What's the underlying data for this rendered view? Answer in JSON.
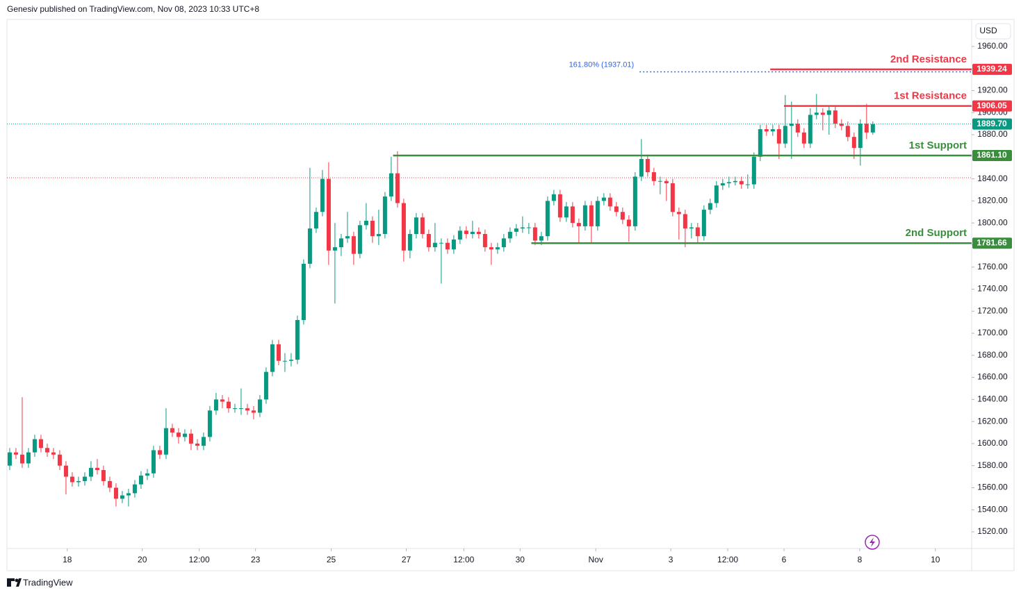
{
  "chart_data": {
    "type": "candlestick",
    "header": "Genesiv published on TradingView.com, Nov 08, 2023 10:33 UTC+8",
    "currency": "USD",
    "brand": "TradingView",
    "up_color": "#089981",
    "down_color": "#f23645",
    "open": [
      1580,
      1592,
      1590,
      1582,
      1592,
      1604,
      1596,
      1592,
      1590,
      1580,
      1570,
      1565,
      1566,
      1570,
      1578,
      1576,
      1566,
      1560,
      1550,
      1553,
      1555,
      1563,
      1571,
      1573,
      1594,
      1590,
      1614,
      1610,
      1606,
      1609,
      1600,
      1598,
      1606,
      1630,
      1640,
      1638,
      1632,
      1632,
      1632,
      1630,
      1628,
      1640,
      1665,
      1690,
      1675,
      1675,
      1676,
      1712,
      1763,
      1795,
      1810,
      1840,
      1775,
      1778,
      1786,
      1788,
      1772,
      1798,
      1802,
      1788,
      1790,
      1824,
      1845,
      1818,
      1775,
      1790,
      1805,
      1790,
      1778,
      1782,
      1782,
      1776,
      1785,
      1793,
      1790,
      1792,
      1790,
      1778,
      1776,
      1778,
      1786,
      1792,
      1795,
      1796,
      1796,
      1784,
      1788,
      1820,
      1826,
      1805,
      1815,
      1800,
      1797,
      1816,
      1797,
      1820,
      1823,
      1815,
      1810,
      1803,
      1797,
      1842,
      1858,
      1846,
      1838,
      1838,
      1836,
      1810,
      1808,
      1795,
      1796,
      1788,
      1812,
      1818,
      1834,
      1836,
      1837,
      1838,
      1835,
      1835,
      1860,
      1885,
      1883,
      1885,
      1872,
      1888,
      1890,
      1882,
      1872,
      1898,
      1900,
      1898,
      1902,
      1890,
      1888,
      1878,
      1868,
      1890,
      1882
    ],
    "high": [
      1596,
      1596,
      1642,
      1596,
      1608,
      1608,
      1600,
      1596,
      1594,
      1584,
      1574,
      1570,
      1574,
      1584,
      1586,
      1580,
      1570,
      1564,
      1557,
      1559,
      1567,
      1575,
      1577,
      1598,
      1598,
      1632,
      1618,
      1614,
      1613,
      1613,
      1604,
      1610,
      1634,
      1646,
      1644,
      1642,
      1636,
      1650,
      1636,
      1634,
      1644,
      1669,
      1694,
      1694,
      1682,
      1682,
      1716,
      1767,
      1850,
      1814,
      1848,
      1855,
      1800,
      1790,
      1810,
      1792,
      1802,
      1818,
      1806,
      1812,
      1828,
      1860,
      1865,
      1822,
      1794,
      1809,
      1809,
      1794,
      1800,
      1786,
      1786,
      1789,
      1797,
      1797,
      1802,
      1796,
      1794,
      1782,
      1782,
      1790,
      1796,
      1799,
      1806,
      1800,
      1800,
      1792,
      1824,
      1830,
      1830,
      1819,
      1819,
      1804,
      1820,
      1820,
      1824,
      1827,
      1827,
      1819,
      1814,
      1807,
      1846,
      1876,
      1862,
      1850,
      1842,
      1840,
      1840,
      1814,
      1812,
      1800,
      1800,
      1816,
      1822,
      1838,
      1840,
      1842,
      1842,
      1842,
      1844,
      1864,
      1889,
      1889,
      1889,
      1889,
      1916,
      1910,
      1894,
      1886,
      1904,
      1917,
      1904,
      1906,
      1906,
      1894,
      1892,
      1882,
      1894,
      1908,
      1892
    ],
    "low": [
      1576,
      1586,
      1578,
      1578,
      1588,
      1592,
      1588,
      1586,
      1576,
      1554,
      1561,
      1561,
      1562,
      1566,
      1572,
      1562,
      1556,
      1543,
      1546,
      1543,
      1551,
      1559,
      1567,
      1569,
      1586,
      1586,
      1606,
      1600,
      1602,
      1594,
      1594,
      1594,
      1602,
      1626,
      1632,
      1628,
      1628,
      1626,
      1626,
      1622,
      1624,
      1636,
      1661,
      1671,
      1665,
      1670,
      1672,
      1708,
      1759,
      1791,
      1806,
      1762,
      1727,
      1770,
      1782,
      1762,
      1768,
      1794,
      1782,
      1780,
      1786,
      1820,
      1814,
      1765,
      1768,
      1786,
      1786,
      1774,
      1774,
      1745,
      1772,
      1772,
      1781,
      1786,
      1786,
      1786,
      1774,
      1762,
      1772,
      1774,
      1782,
      1788,
      1791,
      1790,
      1780,
      1780,
      1784,
      1816,
      1801,
      1801,
      1796,
      1782,
      1793,
      1782,
      1793,
      1816,
      1811,
      1806,
      1799,
      1783,
      1793,
      1838,
      1842,
      1834,
      1826,
      1820,
      1806,
      1785,
      1778,
      1786,
      1782,
      1784,
      1808,
      1814,
      1830,
      1832,
      1834,
      1831,
      1831,
      1831,
      1856,
      1879,
      1879,
      1858,
      1868,
      1858,
      1878,
      1868,
      1868,
      1894,
      1884,
      1880,
      1886,
      1884,
      1874,
      1858,
      1852,
      1876,
      1880
    ],
    "close": [
      1592,
      1590,
      1582,
      1592,
      1604,
      1596,
      1592,
      1590,
      1580,
      1570,
      1565,
      1566,
      1570,
      1578,
      1576,
      1566,
      1560,
      1550,
      1553,
      1555,
      1563,
      1571,
      1573,
      1594,
      1590,
      1614,
      1610,
      1606,
      1609,
      1600,
      1598,
      1606,
      1630,
      1640,
      1638,
      1632,
      1632,
      1632,
      1630,
      1628,
      1640,
      1665,
      1690,
      1675,
      1675,
      1676,
      1712,
      1763,
      1795,
      1810,
      1840,
      1775,
      1778,
      1786,
      1788,
      1772,
      1798,
      1802,
      1788,
      1790,
      1824,
      1845,
      1818,
      1775,
      1790,
      1805,
      1790,
      1778,
      1782,
      1782,
      1776,
      1785,
      1793,
      1790,
      1792,
      1790,
      1778,
      1776,
      1778,
      1786,
      1792,
      1795,
      1796,
      1796,
      1784,
      1788,
      1820,
      1826,
      1805,
      1815,
      1800,
      1797,
      1816,
      1797,
      1820,
      1823,
      1815,
      1810,
      1803,
      1797,
      1842,
      1858,
      1846,
      1838,
      1838,
      1836,
      1810,
      1808,
      1795,
      1796,
      1788,
      1812,
      1818,
      1834,
      1836,
      1837,
      1838,
      1835,
      1835,
      1860,
      1885,
      1883,
      1885,
      1872,
      1888,
      1890,
      1882,
      1872,
      1898,
      1900,
      1898,
      1902,
      1890,
      1888,
      1878,
      1868,
      1890,
      1882,
      1889.7
    ],
    "last_price_label": "1889.70",
    "reference_line": 1841,
    "levels": [
      {
        "name": "2nd Resistance",
        "value": 1939.24,
        "label": "1939.24",
        "color": "#f23645",
        "from": 121.6
      },
      {
        "name": "1st Resistance",
        "value": 1906.05,
        "label": "1906.05",
        "color": "#f23645",
        "from": 123.8
      },
      {
        "name": "1st Support",
        "value": 1861.1,
        "label": "1861.10",
        "color": "#388e3c",
        "from": 61.3
      },
      {
        "name": "2nd Support",
        "value": 1781.66,
        "label": "1781.66",
        "color": "#388e3c",
        "from": 83.4
      }
    ],
    "fib": {
      "label": "161.80% (1937.01)",
      "value": 1937.01,
      "color": "#2962ff",
      "from": 100.7
    },
    "xlim": [
      -0.44,
      153.8
    ],
    "xticks": [
      {
        "value": 9.2,
        "label": "18"
      },
      {
        "value": 21.2,
        "label": "20"
      },
      {
        "value": 30.3,
        "label": "12:00"
      },
      {
        "value": 39.3,
        "label": "23"
      },
      {
        "value": 51.4,
        "label": "25"
      },
      {
        "value": 63.4,
        "label": "27"
      },
      {
        "value": 72.6,
        "label": "12:00"
      },
      {
        "value": 81.6,
        "label": "30"
      },
      {
        "value": 93.7,
        "label": "Nov"
      },
      {
        "value": 105.7,
        "label": "3"
      },
      {
        "value": 114.8,
        "label": "12:00"
      },
      {
        "value": 123.8,
        "label": "6"
      },
      {
        "value": 135.9,
        "label": "8"
      },
      {
        "value": 148,
        "label": "10"
      }
    ],
    "ylim": [
      1504.9,
      1984.5
    ],
    "yticks": [
      {
        "value": 1520,
        "label": "1520.00"
      },
      {
        "value": 1540,
        "label": "1540.00"
      },
      {
        "value": 1560,
        "label": "1560.00"
      },
      {
        "value": 1580,
        "label": "1580.00"
      },
      {
        "value": 1600,
        "label": "1600.00"
      },
      {
        "value": 1620,
        "label": "1620.00"
      },
      {
        "value": 1640,
        "label": "1640.00"
      },
      {
        "value": 1660,
        "label": "1660.00"
      },
      {
        "value": 1680,
        "label": "1680.00"
      },
      {
        "value": 1700,
        "label": "1700.00"
      },
      {
        "value": 1720,
        "label": "1720.00"
      },
      {
        "value": 1740,
        "label": "1740.00"
      },
      {
        "value": 1760,
        "label": "1760.00"
      },
      {
        "value": 1780,
        "label": "1780.00"
      },
      {
        "value": 1800,
        "label": "1800.00"
      },
      {
        "value": 1820,
        "label": "1820.00"
      },
      {
        "value": 1840,
        "label": "1840.00"
      },
      {
        "value": 1880,
        "label": "1880.00"
      },
      {
        "value": 1900,
        "label": "1900.00"
      },
      {
        "value": 1920,
        "label": "1920.00"
      },
      {
        "value": 1960,
        "label": "1960.00"
      }
    ]
  }
}
